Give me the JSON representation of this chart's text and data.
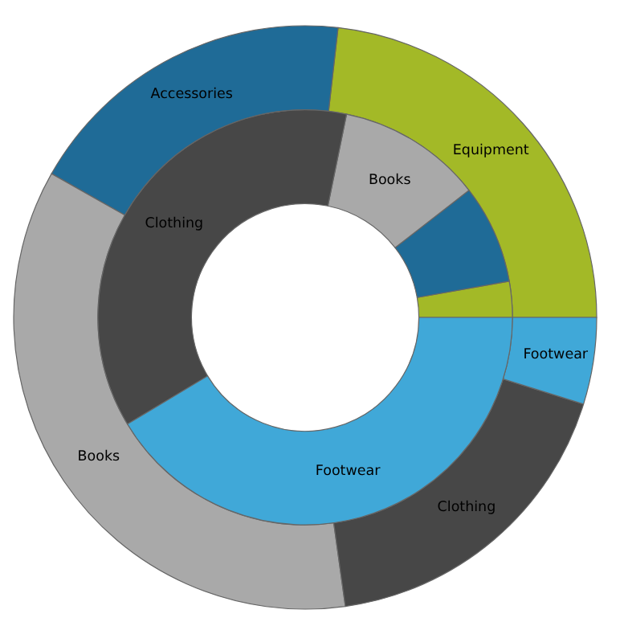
{
  "chart_data": {
    "type": "donut",
    "legend": false,
    "categories": [
      "Equipment",
      "Accessories",
      "Books",
      "Clothing",
      "Footwear"
    ],
    "series": [
      {
        "values": [
          23.2,
          18.6,
          35.4,
          18.0,
          4.8
        ],
        "colors": [
          "#a3b927",
          "#1f6b97",
          "#a9a9a9",
          "#474747",
          "#40a8d8"
        ]
      },
      {
        "values": [
          2.8,
          7.7,
          11.3,
          36.8,
          41.4
        ],
        "colors": [
          "#a3b927",
          "#1f6b97",
          "#a9a9a9",
          "#474747",
          "#40a8d8"
        ],
        "value_labels": [
          null,
          null,
          "Books",
          "Clothing",
          "Footwear"
        ]
      }
    ]
  }
}
